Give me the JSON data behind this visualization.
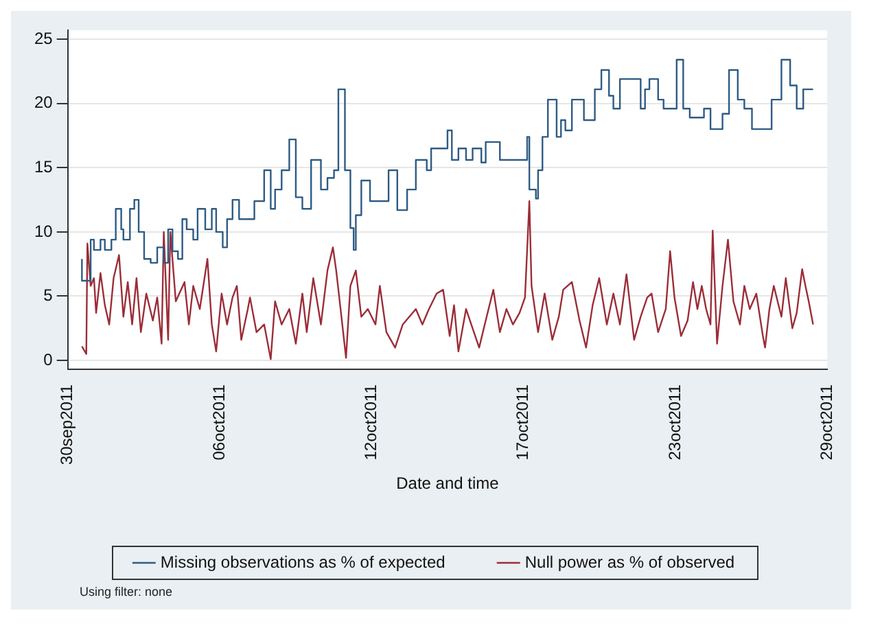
{
  "chart_data": {
    "type": "line",
    "xlabel": "Date and time",
    "annotations": [
      "Using filter: none"
    ],
    "xlim": [
      "2011-09-30T12:00",
      "2011-10-29T12:00"
    ],
    "xticks": [
      {
        "value": "2011-09-30T12:00",
        "label": "30sep2011"
      },
      {
        "value": "2011-10-06T07:12",
        "label": "06oct2011"
      },
      {
        "value": "2011-10-12T02:24",
        "label": "12oct2011"
      },
      {
        "value": "2011-10-17T21:36",
        "label": "17oct2011"
      },
      {
        "value": "2011-10-23T16:48",
        "label": "23oct2011"
      },
      {
        "value": "2011-10-29T12:00",
        "label": "29oct2011"
      }
    ],
    "ylim": [
      -0.7,
      25.7
    ],
    "yticks": [
      0,
      5,
      10,
      15,
      20,
      25
    ],
    "grid": "y",
    "legend": "bottom",
    "marker": "none",
    "line_style": "solid",
    "series": [
      {
        "name": "Missing observations as % of expected",
        "type": "step",
        "color": "#2e5b84",
        "x": [
          "2011-10-01T01:00",
          "2011-10-01T09:00",
          "2011-10-01T12:00",
          "2011-10-01T18:00",
          "2011-10-01T22:00",
          "2011-10-02T04:00",
          "2011-10-02T08:00",
          "2011-10-02T13:00",
          "2011-10-02T15:00",
          "2011-10-02T21:00",
          "2011-10-03T01:00",
          "2011-10-03T05:00",
          "2011-10-03T10:00",
          "2011-10-03T16:00",
          "2011-10-03T22:00",
          "2011-10-04T04:00",
          "2011-10-04T08:00",
          "2011-10-04T12:00",
          "2011-10-04T17:00",
          "2011-10-04T21:00",
          "2011-10-05T01:00",
          "2011-10-05T07:00",
          "2011-10-05T11:00",
          "2011-10-05T18:00",
          "2011-10-06T00:00",
          "2011-10-06T04:00",
          "2011-10-06T10:00",
          "2011-10-06T14:00",
          "2011-10-06T19:00",
          "2011-10-07T01:00",
          "2011-10-07T07:00",
          "2011-10-07T15:00",
          "2011-10-08T00:00",
          "2011-10-08T06:00",
          "2011-10-08T10:00",
          "2011-10-08T16:00",
          "2011-10-08T23:00",
          "2011-10-09T05:00",
          "2011-10-09T11:00",
          "2011-10-09T19:00",
          "2011-10-10T04:00",
          "2011-10-10T10:00",
          "2011-10-10T16:00",
          "2011-10-10T20:00",
          "2011-10-11T02:00",
          "2011-10-11T07:00",
          "2011-10-11T10:00",
          "2011-10-11T12:00",
          "2011-10-11T17:00",
          "2011-10-12T01:00",
          "2011-10-12T10:00",
          "2011-10-12T18:00",
          "2011-10-13T02:00",
          "2011-10-13T11:00",
          "2011-10-13T19:00",
          "2011-10-14T05:00",
          "2011-10-14T09:00",
          "2011-10-15T00:00",
          "2011-10-15T04:00",
          "2011-10-15T10:00",
          "2011-10-15T17:00",
          "2011-10-15T23:00",
          "2011-10-16T07:00",
          "2011-10-16T11:00",
          "2011-10-17T00:00",
          "2011-10-17T08:00",
          "2011-10-18T01:00",
          "2011-10-18T03:00",
          "2011-10-18T09:00",
          "2011-10-18T11:00",
          "2011-10-18T15:00",
          "2011-10-18T20:00",
          "2011-10-19T04:00",
          "2011-10-19T08:00",
          "2011-10-19T12:00",
          "2011-10-19T18:00",
          "2011-10-20T05:00",
          "2011-10-20T15:00",
          "2011-10-20T21:00",
          "2011-10-21T04:00",
          "2011-10-21T08:00",
          "2011-10-21T14:00",
          "2011-10-21T20:00",
          "2011-10-22T09:00",
          "2011-10-22T13:00",
          "2011-10-22T17:00",
          "2011-10-23T01:00",
          "2011-10-23T06:00",
          "2011-10-23T18:00",
          "2011-10-24T00:00",
          "2011-10-24T06:00",
          "2011-10-24T19:00",
          "2011-10-25T01:00",
          "2011-10-25T12:00",
          "2011-10-25T18:00",
          "2011-10-26T02:00",
          "2011-10-26T08:00",
          "2011-10-26T15:00",
          "2011-10-26T21:00",
          "2011-10-27T09:00",
          "2011-10-27T18:00",
          "2011-10-28T02:00",
          "2011-10-28T08:00",
          "2011-10-28T14:00",
          "2011-10-28T19:00",
          "2011-10-28T23:00"
        ],
        "values": [
          7.9,
          6.2,
          9.4,
          8.6,
          9.4,
          8.6,
          9.4,
          11.8,
          10.2,
          9.4,
          11.8,
          12.5,
          10,
          7.9,
          7.6,
          8.8,
          7.6,
          10.2,
          8.5,
          7.9,
          11,
          10.2,
          9.4,
          11.8,
          10.2,
          11.8,
          10,
          8.8,
          11,
          12.5,
          11,
          11,
          12.4,
          14.8,
          11.8,
          13.3,
          14.8,
          17.2,
          12.7,
          11.8,
          15.6,
          13.3,
          14.2,
          14.8,
          21.1,
          14.8,
          10.3,
          8.6,
          11.3,
          14,
          12.4,
          12.4,
          14.8,
          11.7,
          13.3,
          15.6,
          14.8,
          16.5,
          17.9,
          15.6,
          16.5,
          15.6,
          16.5,
          15.4,
          17,
          15.6,
          15.6,
          17.4,
          13.3,
          12.6,
          14.8,
          17.4,
          20.3,
          17.4,
          18.7,
          17.9,
          20.3,
          18.7,
          21.1,
          22.6,
          20.6,
          19.6,
          21.9,
          21.9,
          19.6,
          21.1,
          21.9,
          20.3,
          19.6,
          23.4,
          19.6,
          18.9,
          19.6,
          18,
          19.2,
          22.6,
          20.3,
          19.6,
          18,
          18,
          20.3,
          23.4,
          21.4,
          19.6,
          21.1,
          21.1
        ]
      },
      {
        "name": "Null power as % of observed",
        "color": "#9b2d38",
        "x": [
          "2011-10-01T01:00",
          "2011-10-01T05:00",
          "2011-10-01T06:00",
          "2011-10-01T09:00",
          "2011-10-01T12:00",
          "2011-10-01T14:00",
          "2011-10-01T18:00",
          "2011-10-01T22:00",
          "2011-10-02T02:00",
          "2011-10-02T06:00",
          "2011-10-02T11:00",
          "2011-10-02T15:00",
          "2011-10-02T19:00",
          "2011-10-02T23:00",
          "2011-10-03T03:00",
          "2011-10-03T07:00",
          "2011-10-03T12:00",
          "2011-10-03T18:00",
          "2011-10-03T22:00",
          "2011-10-04T02:00",
          "2011-10-04T04:00",
          "2011-10-04T08:00",
          "2011-10-04T10:00",
          "2011-10-04T15:00",
          "2011-10-04T23:00",
          "2011-10-05T03:00",
          "2011-10-05T07:00",
          "2011-10-05T13:00",
          "2011-10-05T20:00",
          "2011-10-06T00:00",
          "2011-10-06T04:00",
          "2011-10-06T09:00",
          "2011-10-06T14:00",
          "2011-10-06T19:00",
          "2011-10-06T23:00",
          "2011-10-07T03:00",
          "2011-10-07T09:00",
          "2011-10-07T11:00",
          "2011-10-07T17:00",
          "2011-10-08T00:00",
          "2011-10-08T06:00",
          "2011-10-08T10:00",
          "2011-10-08T16:00",
          "2011-10-08T23:00",
          "2011-10-09T05:00",
          "2011-10-09T11:00",
          "2011-10-09T15:00",
          "2011-10-09T21:00",
          "2011-10-10T04:00",
          "2011-10-10T10:00",
          "2011-10-10T15:00",
          "2011-10-10T18:00",
          "2011-10-10T22:00",
          "2011-10-11T03:00",
          "2011-10-11T07:00",
          "2011-10-11T12:00",
          "2011-10-11T17:00",
          "2011-10-11T23:00",
          "2011-10-12T06:00",
          "2011-10-12T10:00",
          "2011-10-12T16:00",
          "2011-10-13T00:00",
          "2011-10-13T07:00",
          "2011-10-13T13:00",
          "2011-10-13T19:00",
          "2011-10-14T01:00",
          "2011-10-14T07:00",
          "2011-10-14T14:00",
          "2011-10-14T20:00",
          "2011-10-15T02:00",
          "2011-10-15T06:00",
          "2011-10-15T10:00",
          "2011-10-15T17:00",
          "2011-10-15T23:00",
          "2011-10-16T05:00",
          "2011-10-16T11:00",
          "2011-10-16T18:00",
          "2011-10-17T00:00",
          "2011-10-17T06:00",
          "2011-10-17T12:00",
          "2011-10-17T18:00",
          "2011-10-17T23:00",
          "2011-10-18T03:00",
          "2011-10-18T05:00",
          "2011-10-18T11:00",
          "2011-10-18T17:00",
          "2011-10-19T00:00",
          "2011-10-19T06:00",
          "2011-10-19T10:00",
          "2011-10-19T18:00",
          "2011-10-20T01:00",
          "2011-10-20T07:00",
          "2011-10-20T13:00",
          "2011-10-20T19:00",
          "2011-10-21T02:00",
          "2011-10-21T08:00",
          "2011-10-21T14:00",
          "2011-10-21T20:00",
          "2011-10-22T03:00",
          "2011-10-22T09:00",
          "2011-10-22T15:00",
          "2011-10-22T19:00",
          "2011-10-23T01:00",
          "2011-10-23T08:00",
          "2011-10-23T12:00",
          "2011-10-23T16:00",
          "2011-10-23T22:00",
          "2011-10-24T04:00",
          "2011-10-24T09:00",
          "2011-10-24T13:00",
          "2011-10-24T17:00",
          "2011-10-24T21:00",
          "2011-10-25T01:00",
          "2011-10-25T03:00",
          "2011-10-25T07:00",
          "2011-10-25T12:00",
          "2011-10-25T17:00",
          "2011-10-25T22:00",
          "2011-10-26T04:00",
          "2011-10-26T08:00",
          "2011-10-26T13:00",
          "2011-10-26T19:00",
          "2011-10-27T01:00",
          "2011-10-27T03:00",
          "2011-10-27T07:00",
          "2011-10-27T11:00",
          "2011-10-27T18:00",
          "2011-10-27T22:00",
          "2011-10-28T04:00",
          "2011-10-28T08:00",
          "2011-10-28T13:00",
          "2011-10-28T16:00",
          "2011-10-28T19:00",
          "2011-10-28T23:00"
        ],
        "values": [
          1.1,
          0.5,
          9.1,
          5.8,
          6.4,
          3.7,
          6.8,
          4.3,
          2.8,
          6.4,
          8.2,
          3.4,
          6.1,
          2.8,
          6.4,
          2.2,
          5.2,
          3.1,
          4.9,
          1.3,
          10,
          1.6,
          10,
          4.6,
          6.1,
          2.8,
          5.8,
          4,
          7.9,
          2.8,
          0.7,
          5.2,
          2.8,
          4.9,
          5.8,
          1.6,
          4,
          4.9,
          2.2,
          2.8,
          0.1,
          4.6,
          2.8,
          4,
          1.3,
          5.2,
          2.2,
          6.4,
          2.8,
          7,
          8.8,
          7,
          4,
          0.2,
          5.8,
          7,
          3.4,
          4,
          2.8,
          5.8,
          2.2,
          1,
          2.8,
          3.4,
          4,
          2.8,
          4,
          5.2,
          5.5,
          1.9,
          4.3,
          0.7,
          4,
          2.5,
          1,
          3.1,
          5.5,
          2.2,
          4,
          2.8,
          3.7,
          4.9,
          12.4,
          5.8,
          2.2,
          5.2,
          1.6,
          3.4,
          5.5,
          6.1,
          3.1,
          1,
          4.3,
          6.4,
          2.8,
          5.2,
          2.8,
          6.7,
          1.6,
          3.4,
          4.9,
          5.2,
          2.2,
          4,
          8.5,
          4.9,
          1.9,
          3.1,
          6.1,
          4,
          5.8,
          4,
          2.8,
          10.1,
          1.3,
          5.8,
          9.4,
          4.6,
          2.8,
          5.8,
          4,
          5.2,
          1.9,
          1,
          4,
          5.8,
          3.4,
          6.4,
          2.5,
          3.7,
          7.1,
          5.8,
          4.6,
          2.8
        ]
      }
    ]
  }
}
